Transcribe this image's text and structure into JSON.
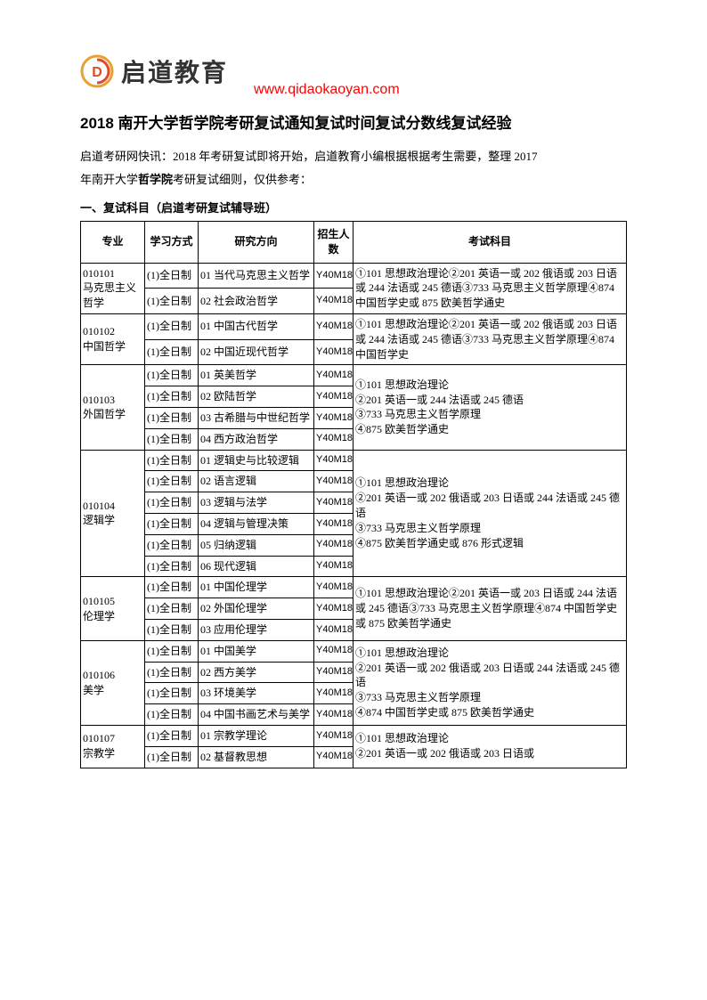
{
  "header": {
    "brand": "启道教育",
    "url": "www.qidaokaoyan.com"
  },
  "title": "2018 南开大学哲学院考研复试通知复试时间复试分数线复试经验",
  "intro_line1": "启道考研网快讯：2018 年考研复试即将开始，启道教育小编根据根据考生需要，整理 2017",
  "intro_line2a": "年南开大学",
  "intro_line2b": "哲学院",
  "intro_line2c": "考研复试细则，仅供参考：",
  "section_title": "一、复试科目（启道考研复试辅导班）",
  "columns": {
    "major": "专业",
    "mode": "学习方式",
    "direction": "研究方向",
    "num": "招生人数",
    "exam": "考试科目"
  },
  "groups": [
    {
      "major": "010101\n马克思主义哲学",
      "rows": [
        {
          "mode": "(1)全日制",
          "dir": "01 当代马克思主义哲学",
          "num": "Y40M18"
        },
        {
          "mode": "(1)全日制",
          "dir": "02 社会政治哲学",
          "num": "Y40M18"
        }
      ],
      "exam": "①101 思想政治理论②201 英语一或 202 俄语或 203 日语或 244 法语或 245 德语③733 马克思主义哲学原理④874 中国哲学史或 875 欧美哲学通史"
    },
    {
      "major": "010102\n中国哲学",
      "rows": [
        {
          "mode": "(1)全日制",
          "dir": "01 中国古代哲学",
          "num": "Y40M18"
        },
        {
          "mode": "(1)全日制",
          "dir": "02 中国近现代哲学",
          "num": "Y40M18"
        }
      ],
      "exam": "①101 思想政治理论②201 英语一或 202 俄语或 203 日语或 244 法语或 245 德语③733 马克思主义哲学原理④874 中国哲学史"
    },
    {
      "major": "010103\n外国哲学",
      "rows": [
        {
          "mode": "(1)全日制",
          "dir": "01 英美哲学",
          "num": "Y40M18"
        },
        {
          "mode": "(1)全日制",
          "dir": "02 欧陆哲学",
          "num": "Y40M18"
        },
        {
          "mode": "(1)全日制",
          "dir": "03 古希腊与中世纪哲学",
          "num": "Y40M18"
        },
        {
          "mode": "(1)全日制",
          "dir": "04 西方政治哲学",
          "num": "Y40M18"
        }
      ],
      "exam": "①101 思想政治理论\n②201 英语一或 244 法语或 245 德语\n③733 马克思主义哲学原理\n④875 欧美哲学通史"
    },
    {
      "major": "010104\n逻辑学",
      "rows": [
        {
          "mode": "(1)全日制",
          "dir": "01 逻辑史与比较逻辑",
          "num": "Y40M18"
        },
        {
          "mode": "(1)全日制",
          "dir": "02 语言逻辑",
          "num": "Y40M18"
        },
        {
          "mode": "(1)全日制",
          "dir": "03 逻辑与法学",
          "num": "Y40M18"
        },
        {
          "mode": "(1)全日制",
          "dir": "04 逻辑与管理决策",
          "num": "Y40M18"
        },
        {
          "mode": "(1)全日制",
          "dir": "05 归纳逻辑",
          "num": "Y40M18"
        },
        {
          "mode": "(1)全日制",
          "dir": "06 现代逻辑",
          "num": "Y40M18"
        }
      ],
      "exam": "①101 思想政治理论\n②201 英语一或 202 俄语或 203 日语或 244 法语或 245 德语\n③733 马克思主义哲学原理\n④875 欧美哲学通史或 876 形式逻辑"
    },
    {
      "major": "010105\n伦理学",
      "rows": [
        {
          "mode": "(1)全日制",
          "dir": "01 中国伦理学",
          "num": "Y40M18"
        },
        {
          "mode": "(1)全日制",
          "dir": "02 外国伦理学",
          "num": "Y40M18"
        },
        {
          "mode": "(1)全日制",
          "dir": "03 应用伦理学",
          "num": "Y40M18"
        }
      ],
      "exam": "①101 思想政治理论②201 英语一或 203 日语或 244 法语或 245 德语③733 马克思主义哲学原理④874 中国哲学史或 875 欧美哲学通史"
    },
    {
      "major": "010106\n美学",
      "rows": [
        {
          "mode": "(1)全日制",
          "dir": "01 中国美学",
          "num": "Y40M18"
        },
        {
          "mode": "(1)全日制",
          "dir": "02 西方美学",
          "num": "Y40M18"
        },
        {
          "mode": "(1)全日制",
          "dir": "03 环境美学",
          "num": "Y40M18"
        },
        {
          "mode": "(1)全日制",
          "dir": "04 中国书画艺术与美学",
          "num": "Y40M18"
        }
      ],
      "exam": "①101 思想政治理论\n②201 英语一或 202 俄语或 203 日语或 244 法语或 245 德语\n③733 马克思主义哲学原理\n④874 中国哲学史或 875 欧美哲学通史"
    },
    {
      "major": "010107\n宗教学",
      "rows": [
        {
          "mode": "(1)全日制",
          "dir": "01 宗教学理论",
          "num": "Y40M18"
        },
        {
          "mode": "(1)全日制",
          "dir": "02 基督教思想",
          "num": "Y40M18"
        }
      ],
      "exam": "①101 思想政治理论\n②201 英语一或 202 俄语或 203 日语或"
    }
  ]
}
